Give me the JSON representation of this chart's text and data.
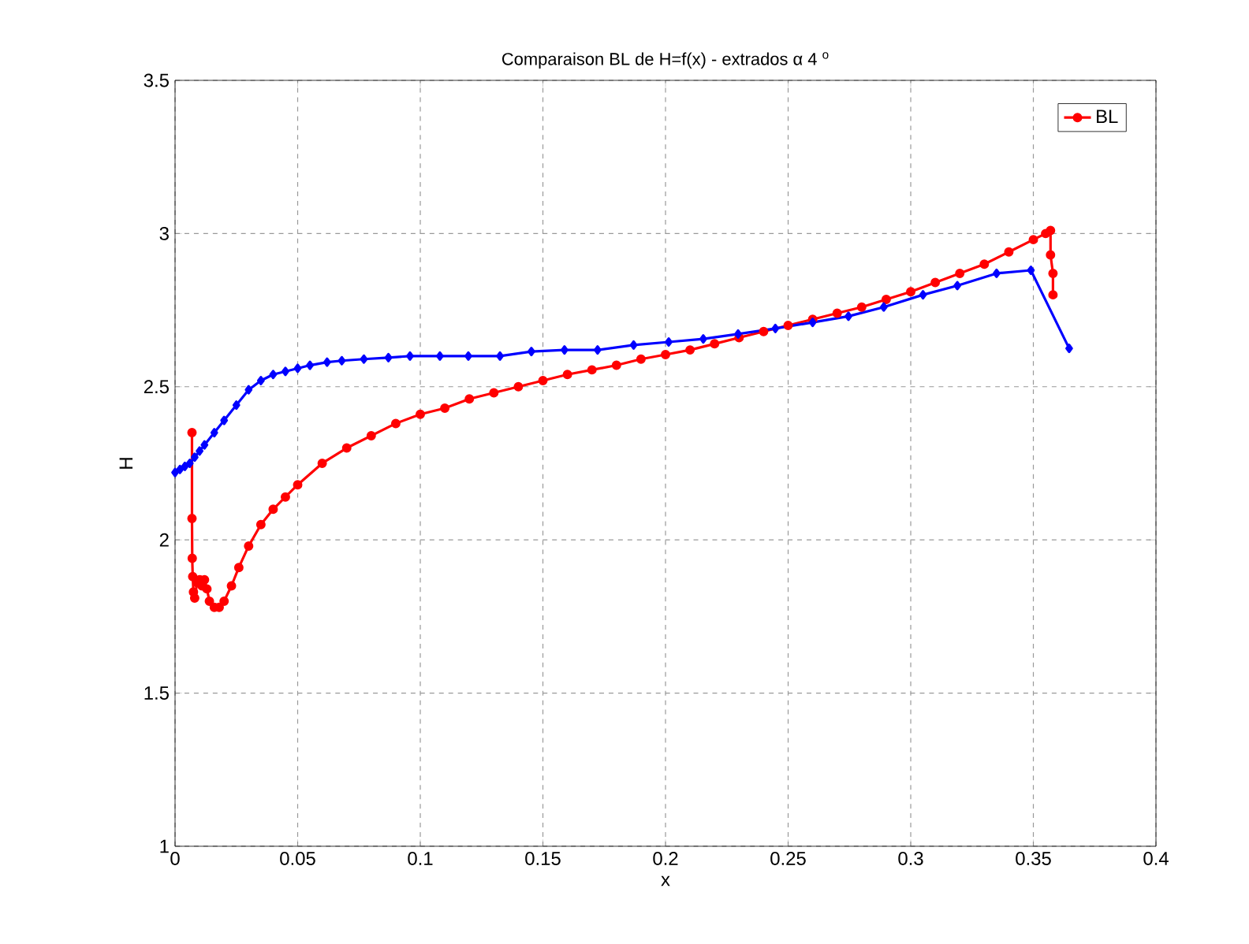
{
  "chart_data": {
    "type": "line",
    "title": "Comparaison BL de H=f(x)  - extrados α 4 $^{o}$",
    "xlabel": "x",
    "ylabel": "H",
    "xlim": [
      0,
      0.4
    ],
    "ylim": [
      1,
      3.5
    ],
    "xticks": [
      0,
      0.05,
      0.1,
      0.15,
      0.2,
      0.25,
      0.3,
      0.35,
      0.4
    ],
    "yticks": [
      1,
      1.5,
      2,
      2.5,
      3,
      3.5
    ],
    "grid": true,
    "legend": "top right",
    "line_style": "solid",
    "series": [
      {
        "name": "BL",
        "color": "#ff0000",
        "marker": "circle",
        "x": [
          0.0069,
          0.0069,
          0.007,
          0.0072,
          0.0075,
          0.008,
          0.009,
          0.01,
          0.011,
          0.012,
          0.013,
          0.014,
          0.016,
          0.018,
          0.02,
          0.023,
          0.026,
          0.03,
          0.035,
          0.04,
          0.045,
          0.05,
          0.06,
          0.07,
          0.08,
          0.09,
          0.1,
          0.11,
          0.12,
          0.13,
          0.14,
          0.15,
          0.16,
          0.17,
          0.18,
          0.19,
          0.2,
          0.21,
          0.22,
          0.23,
          0.24,
          0.25,
          0.26,
          0.27,
          0.28,
          0.29,
          0.3,
          0.31,
          0.32,
          0.33,
          0.34,
          0.35,
          0.355,
          0.357,
          0.357,
          0.358,
          0.358
        ],
        "values": [
          2.35,
          2.07,
          1.94,
          1.88,
          1.83,
          1.81,
          1.86,
          1.87,
          1.85,
          1.87,
          1.84,
          1.8,
          1.78,
          1.78,
          1.8,
          1.85,
          1.91,
          1.98,
          2.05,
          2.1,
          2.14,
          2.18,
          2.25,
          2.3,
          2.34,
          2.38,
          2.41,
          2.43,
          2.46,
          2.48,
          2.5,
          2.52,
          2.54,
          2.555,
          2.57,
          2.59,
          2.605,
          2.62,
          2.64,
          2.66,
          2.68,
          2.7,
          2.72,
          2.74,
          2.76,
          2.785,
          2.81,
          2.84,
          2.87,
          2.9,
          2.94,
          2.98,
          3.0,
          3.01,
          2.93,
          2.87,
          2.8
        ]
      },
      {
        "color": "#0000ff",
        "marker": "diamond",
        "x": [
          0.0,
          0.002,
          0.004,
          0.006,
          0.008,
          0.01,
          0.012,
          0.016,
          0.02,
          0.025,
          0.03,
          0.035,
          0.04,
          0.045,
          0.05,
          0.055,
          0.062,
          0.068,
          0.077,
          0.087,
          0.0958,
          0.108,
          0.1196,
          0.1325,
          0.1453,
          0.1588,
          0.1723,
          0.187,
          0.2013,
          0.2154,
          0.2296,
          0.2448,
          0.26,
          0.2746,
          0.289,
          0.305,
          0.319,
          0.335,
          0.349,
          0.3646
        ],
        "values": [
          2.22,
          2.23,
          2.24,
          2.25,
          2.27,
          2.29,
          2.31,
          2.35,
          2.39,
          2.44,
          2.49,
          2.52,
          2.54,
          2.55,
          2.56,
          2.57,
          2.58,
          2.585,
          2.59,
          2.595,
          2.6,
          2.6,
          2.6,
          2.6,
          2.615,
          2.62,
          2.62,
          2.636,
          2.646,
          2.656,
          2.672,
          2.69,
          2.71,
          2.73,
          2.76,
          2.8,
          2.83,
          2.87,
          2.88,
          2.625
        ]
      }
    ]
  }
}
